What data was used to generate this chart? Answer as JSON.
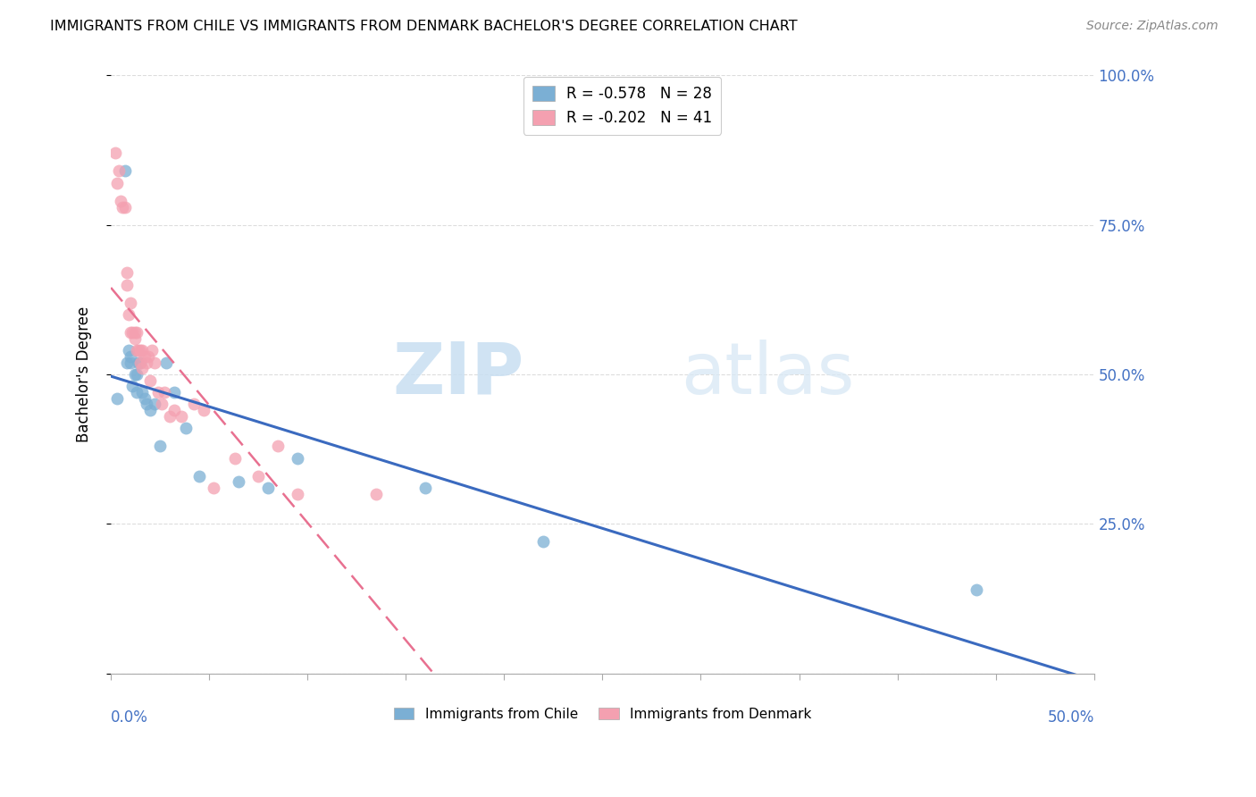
{
  "title": "IMMIGRANTS FROM CHILE VS IMMIGRANTS FROM DENMARK BACHELOR'S DEGREE CORRELATION CHART",
  "source": "Source: ZipAtlas.com",
  "ylabel": "Bachelor's Degree",
  "xlim": [
    0.0,
    0.5
  ],
  "ylim": [
    0.0,
    1.0
  ],
  "yticks": [
    0.0,
    0.25,
    0.5,
    0.75,
    1.0
  ],
  "ytick_labels": [
    "",
    "25.0%",
    "50.0%",
    "75.0%",
    "100.0%"
  ],
  "xtick_labels": [
    "0.0%",
    "",
    "",
    "",
    "",
    "",
    "",
    "",
    "",
    "",
    "50.0%"
  ],
  "chile_R": -0.578,
  "chile_N": 28,
  "denmark_R": -0.202,
  "denmark_N": 41,
  "chile_color": "#7bafd4",
  "denmark_color": "#f4a0b0",
  "chile_line_color": "#3a6abf",
  "denmark_line_color": "#e87090",
  "watermark_zip": "ZIP",
  "watermark_atlas": "atlas",
  "chile_points_x": [
    0.003,
    0.007,
    0.008,
    0.009,
    0.01,
    0.01,
    0.011,
    0.012,
    0.013,
    0.013,
    0.014,
    0.015,
    0.016,
    0.017,
    0.018,
    0.02,
    0.022,
    0.025,
    0.028,
    0.032,
    0.038,
    0.045,
    0.065,
    0.08,
    0.095,
    0.16,
    0.22,
    0.44
  ],
  "chile_points_y": [
    0.46,
    0.84,
    0.52,
    0.54,
    0.52,
    0.53,
    0.48,
    0.5,
    0.5,
    0.47,
    0.52,
    0.52,
    0.47,
    0.46,
    0.45,
    0.44,
    0.45,
    0.38,
    0.52,
    0.47,
    0.41,
    0.33,
    0.32,
    0.31,
    0.36,
    0.31,
    0.22,
    0.14
  ],
  "denmark_points_x": [
    0.002,
    0.003,
    0.004,
    0.005,
    0.006,
    0.007,
    0.008,
    0.008,
    0.009,
    0.01,
    0.01,
    0.011,
    0.012,
    0.012,
    0.013,
    0.013,
    0.014,
    0.015,
    0.015,
    0.016,
    0.016,
    0.017,
    0.018,
    0.019,
    0.02,
    0.021,
    0.022,
    0.024,
    0.026,
    0.027,
    0.03,
    0.032,
    0.036,
    0.042,
    0.047,
    0.052,
    0.063,
    0.075,
    0.085,
    0.095,
    0.135
  ],
  "denmark_points_y": [
    0.87,
    0.82,
    0.84,
    0.79,
    0.78,
    0.78,
    0.65,
    0.67,
    0.6,
    0.62,
    0.57,
    0.57,
    0.56,
    0.57,
    0.54,
    0.57,
    0.54,
    0.52,
    0.54,
    0.54,
    0.51,
    0.53,
    0.52,
    0.53,
    0.49,
    0.54,
    0.52,
    0.47,
    0.45,
    0.47,
    0.43,
    0.44,
    0.43,
    0.45,
    0.44,
    0.31,
    0.36,
    0.33,
    0.38,
    0.3,
    0.3
  ]
}
